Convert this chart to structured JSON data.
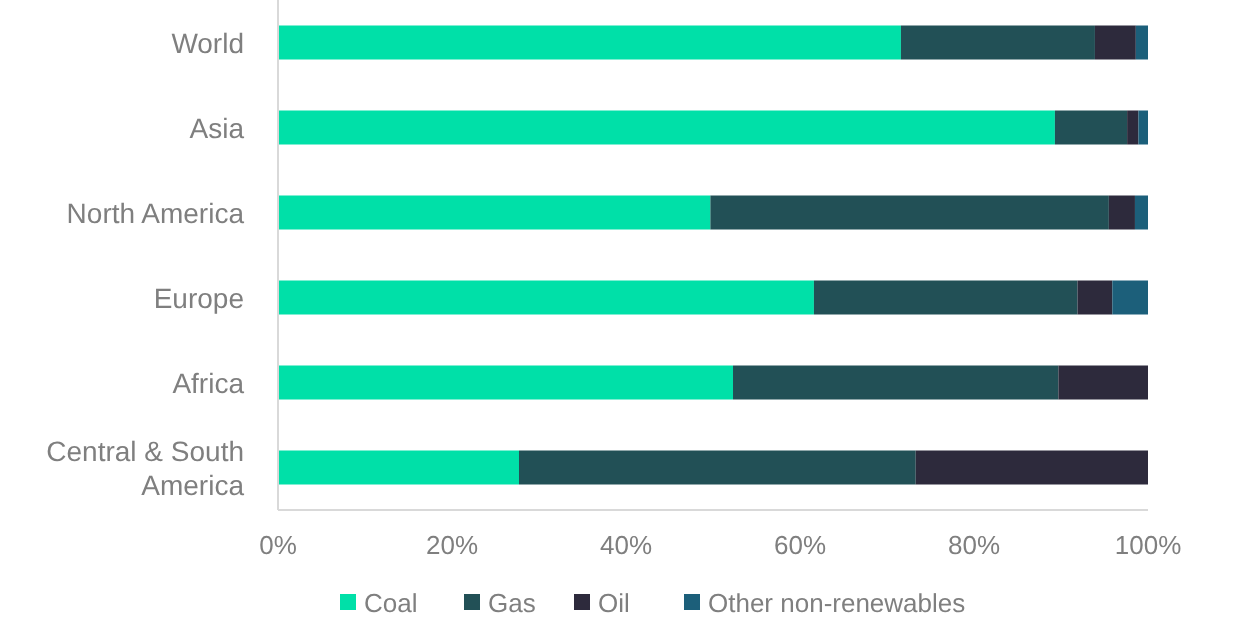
{
  "chart_data": {
    "type": "bar",
    "orientation": "horizontal",
    "stacked": true,
    "categories": [
      "World",
      "Asia",
      "North America",
      "Europe",
      "Africa",
      "Central & South America"
    ],
    "series": [
      {
        "name": "Coal",
        "color": "#00e0a8",
        "values": [
          71.6,
          89.3,
          49.7,
          61.6,
          52.3,
          27.7
        ]
      },
      {
        "name": "Gas",
        "color": "#225056",
        "values": [
          22.3,
          8.3,
          45.8,
          30.3,
          37.4,
          45.6
        ]
      },
      {
        "name": "Oil",
        "color": "#2d2a3c",
        "values": [
          4.7,
          1.3,
          3.0,
          4.0,
          10.3,
          26.7
        ]
      },
      {
        "name": "Other non-renewables",
        "color": "#1c5f7a",
        "values": [
          1.4,
          1.1,
          1.5,
          4.1,
          0,
          0
        ]
      }
    ],
    "xlim": [
      0,
      100
    ],
    "xticks": [
      {
        "value": 0,
        "label": "0%"
      },
      {
        "value": 20,
        "label": "20%"
      },
      {
        "value": 40,
        "label": "40%"
      },
      {
        "value": 60,
        "label": "60%"
      },
      {
        "value": 80,
        "label": "80%"
      },
      {
        "value": 100,
        "label": "100%"
      }
    ],
    "legend": "bottom"
  }
}
